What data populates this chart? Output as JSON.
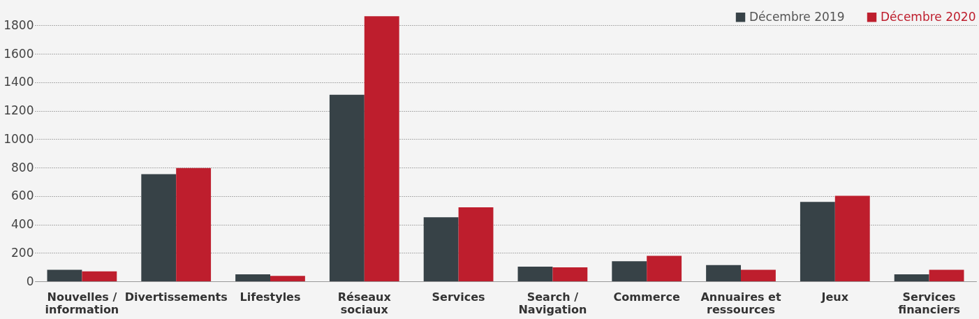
{
  "chart_data": {
    "type": "bar",
    "categories": [
      "Nouvelles / information",
      "Divertissements",
      "Lifestyles",
      "Réseaux sociaux",
      "Services",
      "Search / Navigation",
      "Commerce",
      "Annuaires et ressources",
      "Jeux",
      "Services financiers"
    ],
    "series": [
      {
        "name": "Décembre 2019",
        "color": "#374247",
        "values": [
          81,
          754,
          49,
          1312,
          450,
          103,
          141,
          114,
          559,
          49
        ]
      },
      {
        "name": "Décembre 2020",
        "color": "#be1e2d",
        "values": [
          70,
          797,
          38,
          1865,
          520,
          98,
          179,
          81,
          602,
          81
        ]
      }
    ],
    "ylim": [
      0,
      1900
    ],
    "yticks": [
      0,
      200,
      400,
      600,
      800,
      1000,
      1200,
      1400,
      1600,
      1800
    ],
    "grid": "y",
    "legend": "top right"
  }
}
